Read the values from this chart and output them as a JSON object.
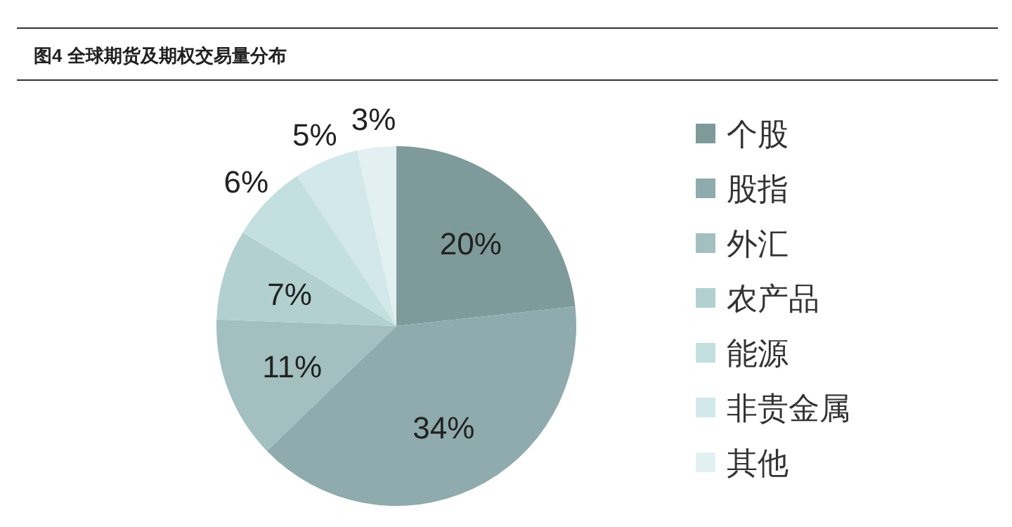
{
  "chart_data": {
    "type": "pie",
    "title": "图4 全球期货及期权交易量分布",
    "categories": [
      "个股",
      "股指",
      "外汇",
      "农产品",
      "能源",
      "非贵金属",
      "其他"
    ],
    "values": [
      20,
      34,
      11,
      7,
      6,
      5,
      3
    ],
    "colors": [
      "#7f9a9b",
      "#8fabad",
      "#a3bfc0",
      "#b3d0d1",
      "#c3dfe0",
      "#d3e8ea",
      "#e3f0f2"
    ],
    "value_labels": [
      "20%",
      "34%",
      "11%",
      "7%",
      "6%",
      "5%",
      "3%"
    ],
    "legend": "right"
  }
}
